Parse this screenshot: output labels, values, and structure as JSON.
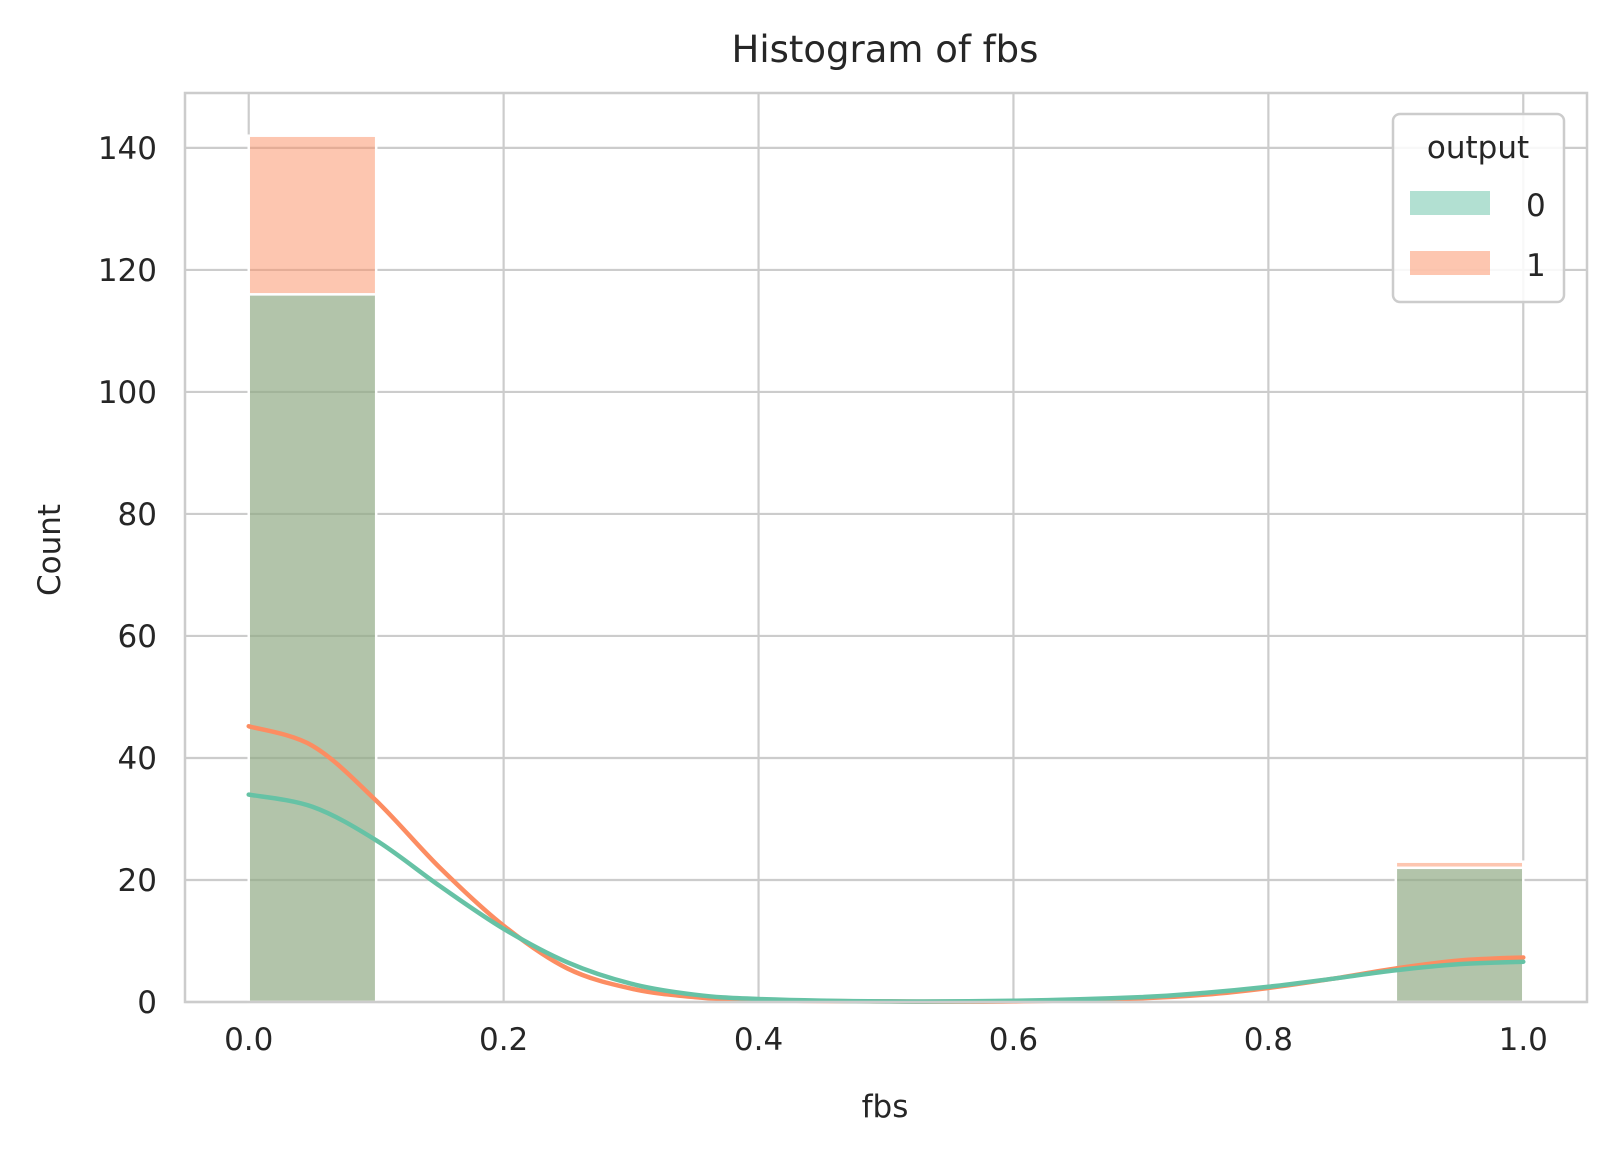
{
  "chart_data": {
    "type": "histogram",
    "title": "Histogram of fbs",
    "xlabel": "fbs",
    "ylabel": "Count",
    "xlim": [
      -0.05,
      1.05
    ],
    "ylim": [
      0,
      149
    ],
    "xticks": [
      "0.0",
      "0.2",
      "0.4",
      "0.6",
      "0.8",
      "1.0"
    ],
    "yticks": [
      "0",
      "20",
      "40",
      "60",
      "80",
      "100",
      "120",
      "140"
    ],
    "grid": true,
    "stacked": true,
    "bin_edges": [
      [
        0.0,
        0.1
      ],
      [
        0.9,
        1.0
      ]
    ],
    "legend": {
      "title": "output",
      "position": "top-right",
      "entries": [
        "0",
        "1"
      ]
    },
    "series": [
      {
        "name": "0",
        "color": "#66c2a5",
        "bars": [
          {
            "x0": 0.0,
            "x1": 0.1,
            "count": 116
          },
          {
            "x0": 0.9,
            "x1": 1.0,
            "count": 22
          }
        ],
        "kde": {
          "x": [
            0.0,
            0.05,
            0.1,
            0.15,
            0.2,
            0.25,
            0.3,
            0.35,
            0.4,
            0.5,
            0.6,
            0.7,
            0.75,
            0.8,
            0.85,
            0.9,
            0.95,
            1.0
          ],
          "y": [
            34,
            32,
            26.5,
            19,
            12,
            6.5,
            3,
            1.2,
            0.5,
            0.1,
            0.2,
            0.8,
            1.5,
            2.5,
            3.8,
            5.2,
            6.2,
            6.6
          ]
        }
      },
      {
        "name": "1",
        "color": "#fc8d62",
        "bars": [
          {
            "x0": 0.0,
            "x1": 0.1,
            "count": 26
          },
          {
            "x0": 0.9,
            "x1": 1.0,
            "count": 1
          }
        ],
        "kde": {
          "x": [
            0.0,
            0.05,
            0.1,
            0.15,
            0.2,
            0.25,
            0.3,
            0.35,
            0.4,
            0.5,
            0.6,
            0.7,
            0.75,
            0.8,
            0.85,
            0.9,
            0.95,
            1.0
          ],
          "y": [
            45.2,
            42,
            33,
            22,
            12.5,
            5.5,
            2.2,
            0.8,
            0.3,
            0.1,
            0.1,
            0.6,
            1.2,
            2.3,
            3.8,
            5.5,
            6.8,
            7.3
          ]
        }
      }
    ]
  }
}
